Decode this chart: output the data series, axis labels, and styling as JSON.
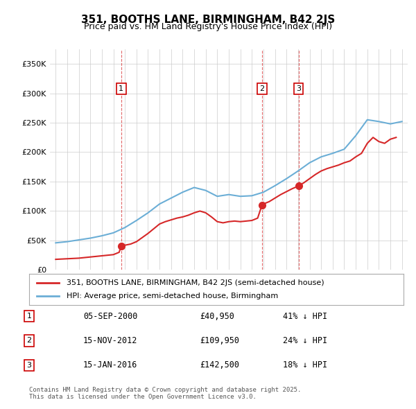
{
  "title": "351, BOOTHS LANE, BIRMINGHAM, B42 2JS",
  "subtitle": "Price paid vs. HM Land Registry's House Price Index (HPI)",
  "xlabel": "",
  "ylabel": "",
  "ylim": [
    0,
    375000
  ],
  "yticks": [
    0,
    50000,
    100000,
    150000,
    200000,
    250000,
    300000,
    350000
  ],
  "ytick_labels": [
    "£0",
    "£50K",
    "£100K",
    "£150K",
    "£200K",
    "£250K",
    "£300K",
    "£350K"
  ],
  "sale_dates": [
    2000.67,
    2012.87,
    2016.04
  ],
  "sale_prices": [
    40950,
    109950,
    142500
  ],
  "sale_labels": [
    "1",
    "2",
    "3"
  ],
  "hpi_color": "#6baed6",
  "price_color": "#d62728",
  "marker_label_box_color": "#cc0000",
  "background_color": "#ffffff",
  "grid_color": "#cccccc",
  "legend_label_price": "351, BOOTHS LANE, BIRMINGHAM, B42 2JS (semi-detached house)",
  "legend_label_hpi": "HPI: Average price, semi-detached house, Birmingham",
  "table_rows": [
    [
      "1",
      "05-SEP-2000",
      "£40,950",
      "41% ↓ HPI"
    ],
    [
      "2",
      "15-NOV-2012",
      "£109,950",
      "24% ↓ HPI"
    ],
    [
      "3",
      "15-JAN-2016",
      "£142,500",
      "18% ↓ HPI"
    ]
  ],
  "footer_text": "Contains HM Land Registry data © Crown copyright and database right 2025.\nThis data is licensed under the Open Government Licence v3.0.",
  "hpi_years": [
    1995,
    1996,
    1997,
    1998,
    1999,
    2000,
    2001,
    2002,
    2003,
    2004,
    2005,
    2006,
    2007,
    2008,
    2009,
    2010,
    2011,
    2012,
    2013,
    2014,
    2015,
    2016,
    2017,
    2018,
    2019,
    2020,
    2021,
    2022,
    2023,
    2024,
    2025
  ],
  "hpi_values": [
    46000,
    48000,
    51000,
    54000,
    58000,
    63000,
    72000,
    84000,
    97000,
    112000,
    122000,
    132000,
    140000,
    135000,
    125000,
    128000,
    125000,
    126000,
    132000,
    143000,
    155000,
    168000,
    182000,
    192000,
    198000,
    205000,
    228000,
    255000,
    252000,
    248000,
    252000
  ],
  "price_years": [
    1995,
    1995.5,
    1996,
    1996.5,
    1997,
    1997.5,
    1998,
    1998.5,
    1999,
    1999.5,
    2000,
    2000.5,
    2000.67,
    2001,
    2001.5,
    2002,
    2002.5,
    2003,
    2003.5,
    2004,
    2004.5,
    2005,
    2005.5,
    2006,
    2006.5,
    2007,
    2007.5,
    2008,
    2008.5,
    2009,
    2009.5,
    2010,
    2010.5,
    2011,
    2011.5,
    2012,
    2012.5,
    2012.87,
    2013,
    2013.5,
    2014,
    2014.5,
    2015,
    2015.5,
    2016.04,
    2016.5,
    2017,
    2017.5,
    2018,
    2018.5,
    2019,
    2019.5,
    2020,
    2020.5,
    2021,
    2021.5,
    2022,
    2022.5,
    2023,
    2023.5,
    2024,
    2024.5
  ],
  "price_values": [
    18000,
    18500,
    19000,
    19500,
    20000,
    21000,
    22000,
    23000,
    24000,
    25000,
    26000,
    30000,
    40950,
    42000,
    44000,
    48000,
    55000,
    62000,
    70000,
    78000,
    82000,
    85000,
    88000,
    90000,
    93000,
    97000,
    100000,
    97000,
    90000,
    82000,
    80000,
    82000,
    83000,
    82000,
    83000,
    84000,
    88000,
    109950,
    112000,
    116000,
    122000,
    128000,
    133000,
    138000,
    142500,
    148000,
    155000,
    162000,
    168000,
    172000,
    175000,
    178000,
    182000,
    185000,
    192000,
    198000,
    215000,
    225000,
    218000,
    215000,
    222000,
    225000
  ]
}
